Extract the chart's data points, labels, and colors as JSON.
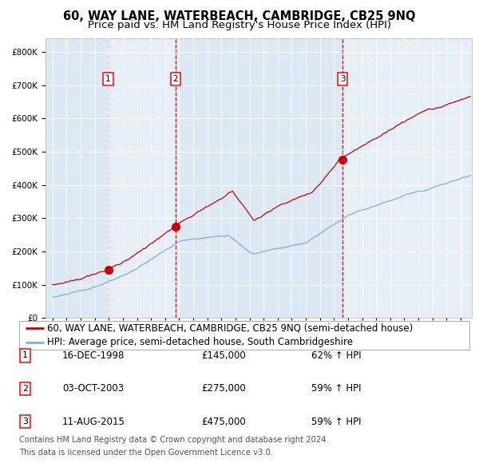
{
  "title": "60, WAY LANE, WATERBEACH, CAMBRIDGE, CB25 9NQ",
  "subtitle": "Price paid vs. HM Land Registry's House Price Index (HPI)",
  "background_color": "#ffffff",
  "chart_bg_color": "#dce9f5",
  "grid_color": "#ffffff",
  "red_line_color": "#cc0000",
  "blue_line_color": "#7bafd4",
  "sale_dot_color": "#cc0000",
  "vline_color": "#cc0000",
  "yticks": [
    0,
    100000,
    200000,
    300000,
    400000,
    500000,
    600000,
    700000,
    800000
  ],
  "xlim": [
    1994.5,
    2024.8
  ],
  "ylim": [
    0,
    840000
  ],
  "sales": [
    {
      "label": "1",
      "date": "16-DEC-1998",
      "price": 145000,
      "x_year": 1998.96,
      "hpi_pct": "62% ↑ HPI"
    },
    {
      "label": "2",
      "date": "03-OCT-2003",
      "price": 275000,
      "x_year": 2003.75,
      "hpi_pct": "59% ↑ HPI"
    },
    {
      "label": "3",
      "date": "11-AUG-2015",
      "price": 475000,
      "x_year": 2015.61,
      "hpi_pct": "59% ↑ HPI"
    }
  ],
  "legend_entries": [
    {
      "color": "#cc0000",
      "label": "60, WAY LANE, WATERBEACH, CAMBRIDGE, CB25 9NQ (semi-detached house)"
    },
    {
      "color": "#7bafd4",
      "label": "HPI: Average price, semi-detached house, South Cambridgeshire"
    }
  ],
  "table_rows": [
    {
      "num": "1",
      "date": "16-DEC-1998",
      "price": "£145,000",
      "hpi": "62% ↑ HPI"
    },
    {
      "num": "2",
      "date": "03-OCT-2003",
      "price": "£275,000",
      "hpi": "59% ↑ HPI"
    },
    {
      "num": "3",
      "date": "11-AUG-2015",
      "price": "£475,000",
      "hpi": "59% ↑ HPI"
    }
  ],
  "footnote1": "Contains HM Land Registry data © Crown copyright and database right 2024.",
  "footnote2": "This data is licensed under the Open Government Licence v3.0.",
  "title_fontsize": 10.5,
  "subtitle_fontsize": 9.5,
  "tick_fontsize": 7.5,
  "legend_fontsize": 8.5,
  "table_fontsize": 8.5,
  "footnote_fontsize": 7.2
}
